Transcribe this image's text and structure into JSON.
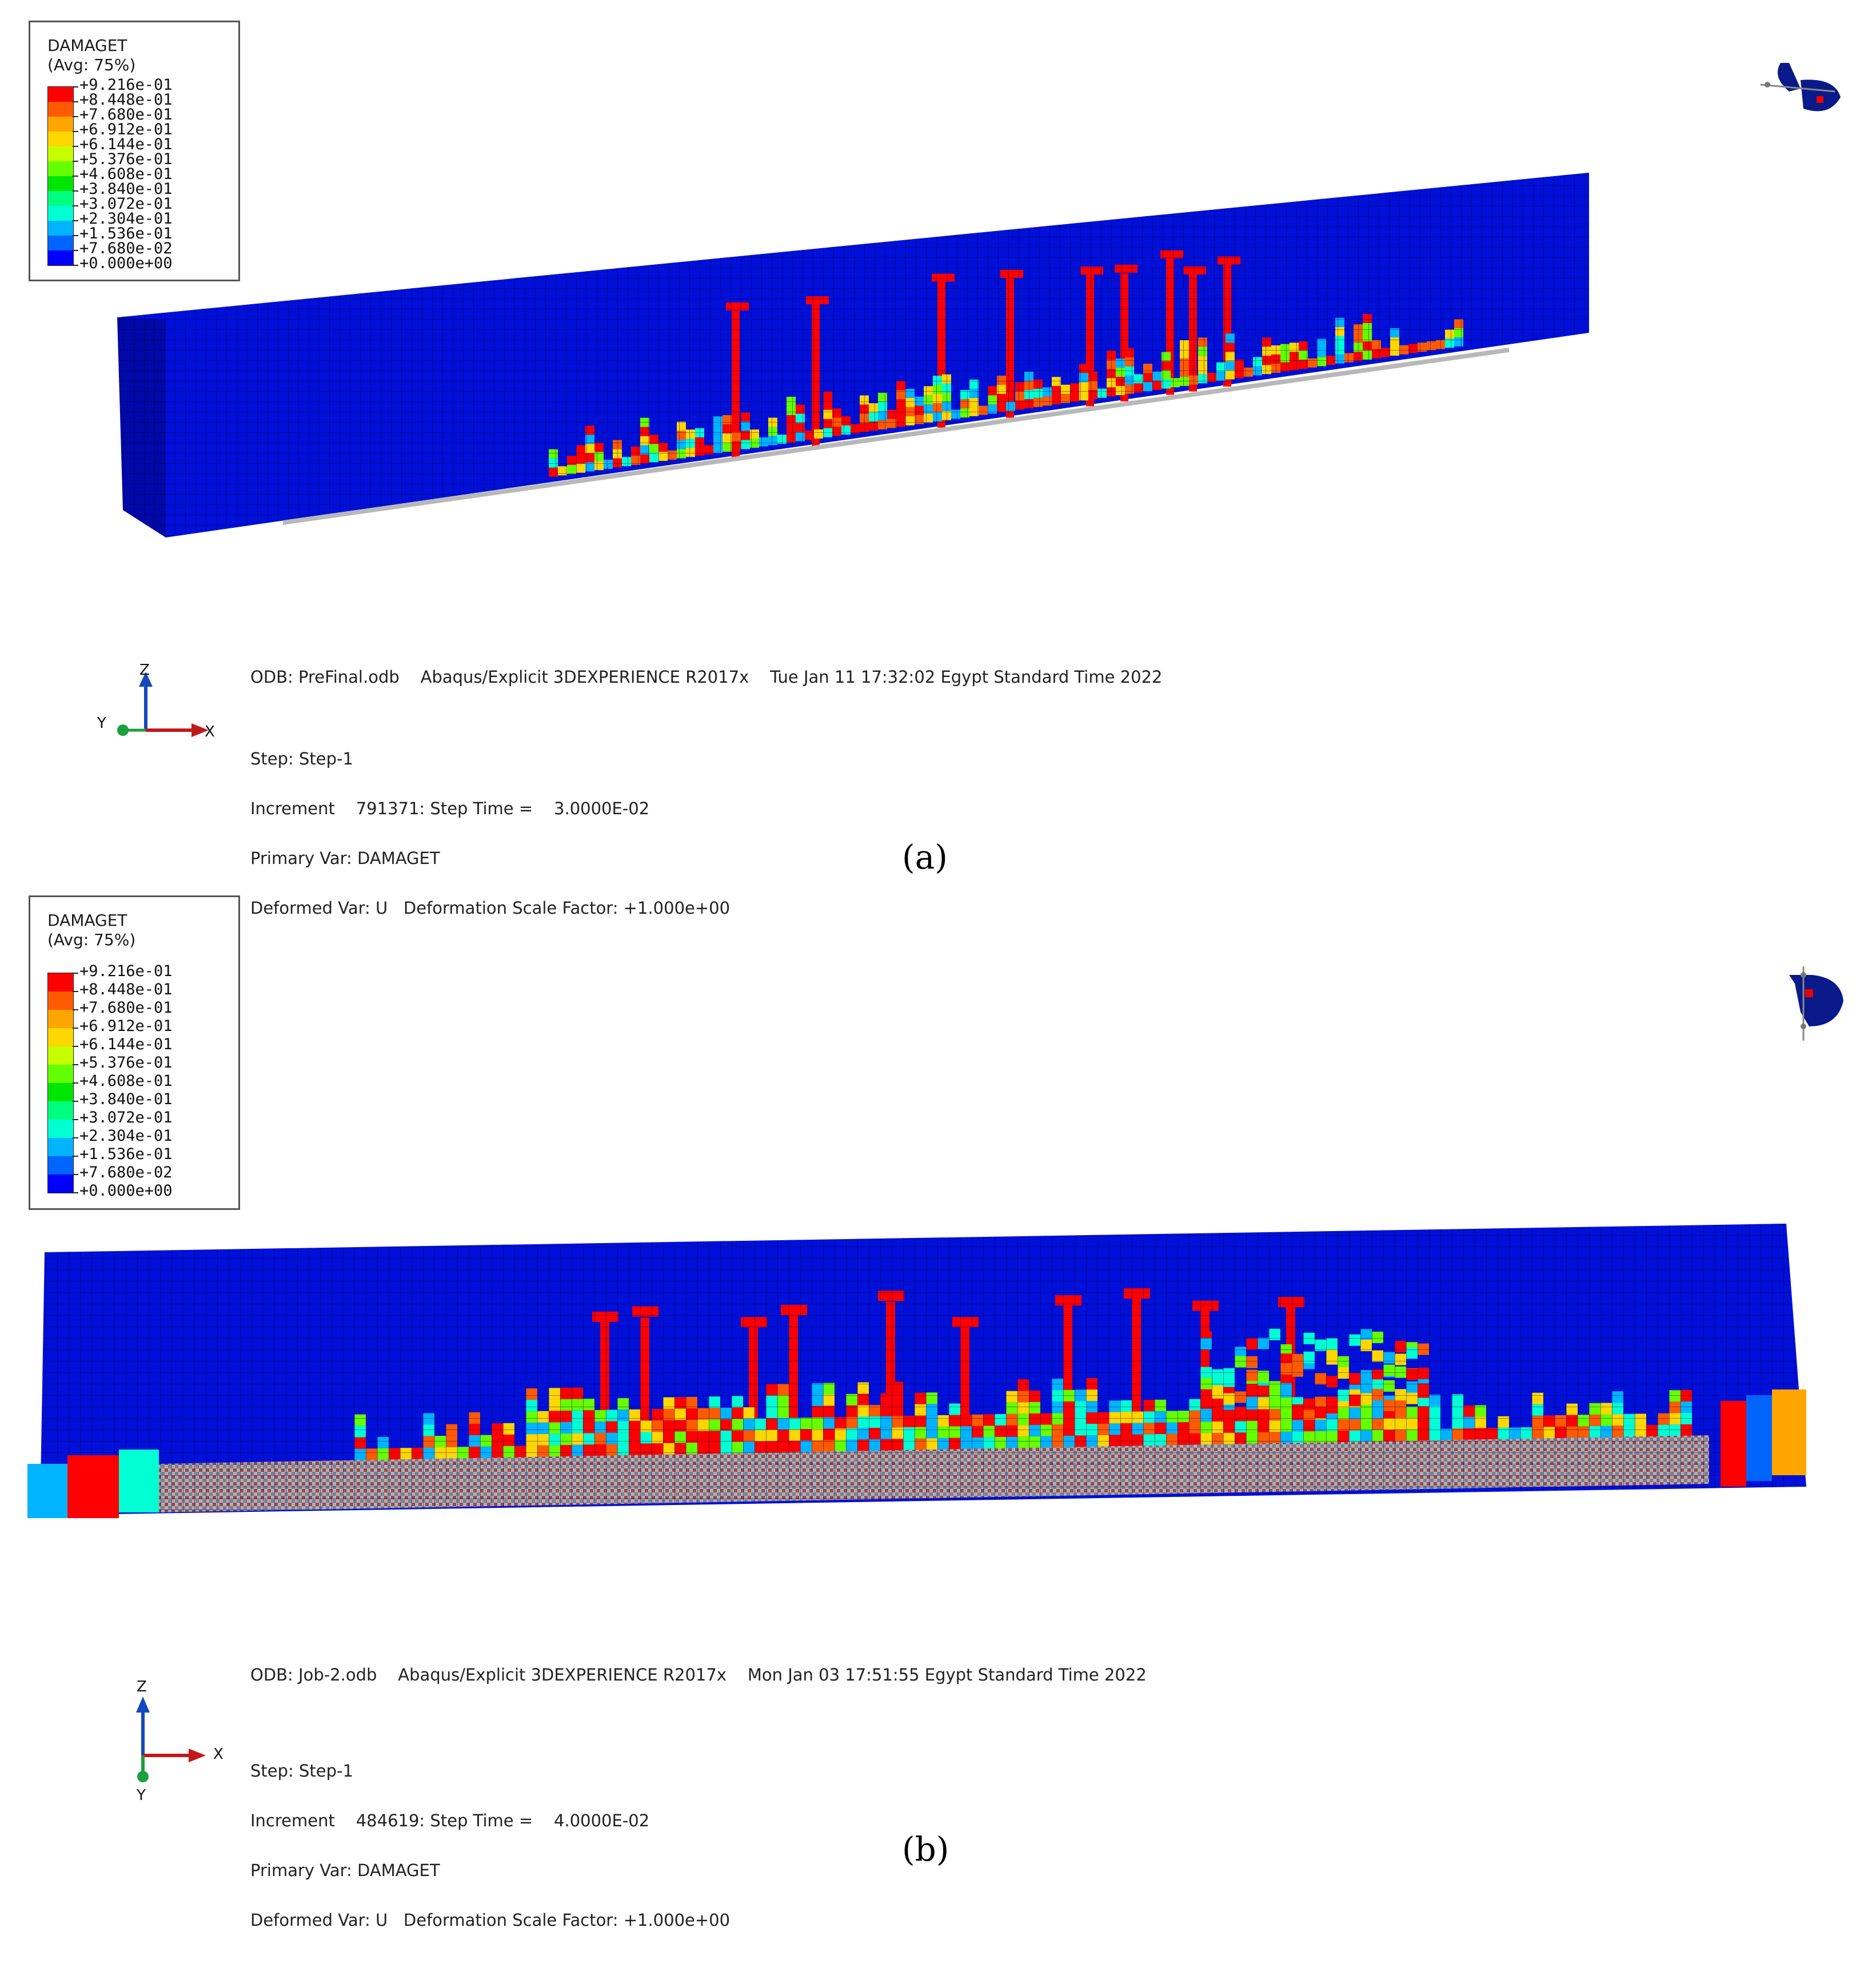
{
  "legend": {
    "title": "DAMAGET",
    "subtitle": "(Avg: 75%)",
    "levels": [
      "+9.216e-01",
      "+8.448e-01",
      "+7.680e-01",
      "+6.912e-01",
      "+6.144e-01",
      "+5.376e-01",
      "+4.608e-01",
      "+3.840e-01",
      "+3.072e-01",
      "+2.304e-01",
      "+1.536e-01",
      "+7.680e-02",
      "+0.000e+00"
    ],
    "band_colors": [
      "#ff0000",
      "#ff5a00",
      "#ffa500",
      "#ffd700",
      "#c8ff00",
      "#64ff00",
      "#00e600",
      "#00ff7f",
      "#00ffd2",
      "#00b4ff",
      "#0064ff",
      "#0000ff"
    ]
  },
  "panel_a": {
    "caption": "(a)",
    "odb_line": "ODB: PreFinal.odb    Abaqus/Explicit 3DEXPERIENCE R2017x    Tue Jan 11 17:32:02 Egypt Standard Time 2022",
    "step_line": "Step: Step-1",
    "increment_line": "Increment    791371: Step Time =    3.0000E-02",
    "primary_line": "Primary Var: DAMAGET",
    "deformed_line": "Deformed Var: U   Deformation Scale Factor: +1.000e+00",
    "triad": {
      "z": "Z",
      "y": "Y",
      "x": "X"
    }
  },
  "panel_b": {
    "caption": "(b)",
    "odb_line": "ODB: Job-2.odb    Abaqus/Explicit 3DEXPERIENCE R2017x    Mon Jan 03 17:51:55 Egypt Standard Time 2022",
    "step_line": "Step: Step-1",
    "increment_line": "Increment    484619: Step Time =    4.0000E-02",
    "primary_line": "Primary Var: DAMAGET",
    "deformed_line": "Deformed Var: U   Deformation Scale Factor: +1.000e+00",
    "triad": {
      "z": "Z",
      "y": "Y",
      "x": "X"
    }
  },
  "colors": {
    "beam_base": "#0010d8",
    "mesh_line": "#000050",
    "damage_high": "#ff0000",
    "damage_mid": "#ffd700",
    "damage_low": "#00ffd2",
    "triad_x": "#c0191a",
    "triad_y": "#1aa03c",
    "triad_z": "#1447c0"
  }
}
